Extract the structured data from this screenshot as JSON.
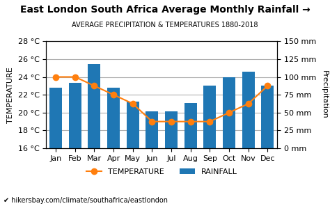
{
  "chart_data": {
    "type": "bar",
    "title": "East London South Africa Average Monthly Rainfall →",
    "subtitle": "AVERAGE PRECIPITATION & TEMPERATURES 1880-2018",
    "categories": [
      "Jan",
      "Feb",
      "Mar",
      "Apr",
      "May",
      "Jun",
      "Jul",
      "Aug",
      "Sep",
      "Oct",
      "Nov",
      "Dec"
    ],
    "series": [
      {
        "name": "TEMPERATURE",
        "type": "line",
        "axis": "y",
        "color": "#ff7f0e",
        "marker": "o",
        "values": [
          24.0,
          24.0,
          23.0,
          22.0,
          21.0,
          19.0,
          19.0,
          19.0,
          19.0,
          20.0,
          21.0,
          23.0
        ]
      },
      {
        "name": "RAINFALL",
        "type": "bar",
        "axis": "y2",
        "color": "#1f77b4",
        "values": [
          85,
          92,
          118,
          85,
          65,
          52,
          52,
          63,
          88,
          100,
          107,
          88
        ]
      }
    ],
    "ylabel": "TEMPERATURE",
    "y2label": "Precipitation",
    "ylim": [
      16,
      28
    ],
    "yticks": [
      {
        "value": 16,
        "label": "16 °C"
      },
      {
        "value": 18,
        "label": "18 °C"
      },
      {
        "value": 20,
        "label": "20 °C"
      },
      {
        "value": 22,
        "label": "22 °C"
      },
      {
        "value": 24,
        "label": "24 °C"
      },
      {
        "value": 26,
        "label": "26 °C"
      },
      {
        "value": 28,
        "label": "28 °C"
      }
    ],
    "y2lim": [
      0,
      150
    ],
    "y2ticks": [
      {
        "value": 0,
        "label": "0 mm"
      },
      {
        "value": 25,
        "label": "25 mm"
      },
      {
        "value": 50,
        "label": "50 mm"
      },
      {
        "value": 75,
        "label": "75 mm"
      },
      {
        "value": 100,
        "label": "100 mm"
      },
      {
        "value": 125,
        "label": "125 mm"
      },
      {
        "value": 150,
        "label": "150 mm"
      }
    ],
    "grid": true,
    "legend": "upper center",
    "annotations": [
      "✔ hikersbay.com/climate/southafrica/eastlondon"
    ]
  }
}
